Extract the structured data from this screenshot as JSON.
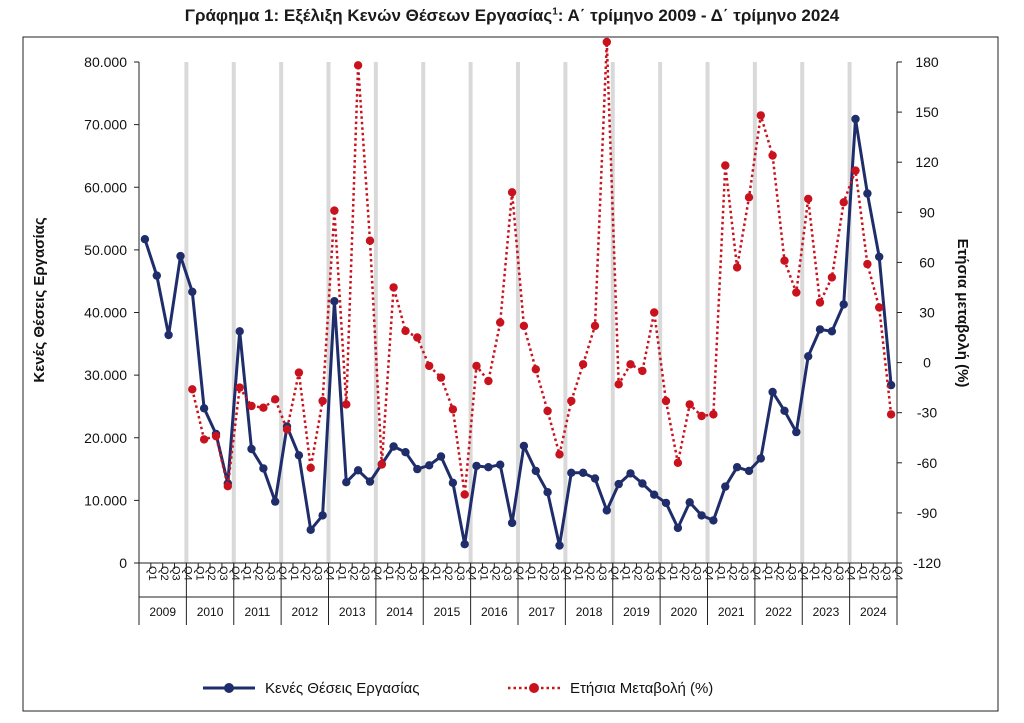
{
  "chart_data": {
    "type": "line",
    "title_main": "Γράφημα 1: Εξέλιξη Κενών Θέσεων Εργασίας",
    "title_sup": "1",
    "title_rest": ": Α΄ τρίμηνο 2009 - Δ΄ τρίμηνο 2024",
    "ylabel_left": "Κενές Θέσεις Εργασίας",
    "ylabel_right": "Ετήσια μεταβολή (%)",
    "y_left_lim": [
      0,
      80000
    ],
    "y_left_ticks": [
      "0",
      "10.000",
      "20.000",
      "30.000",
      "40.000",
      "50.000",
      "60.000",
      "70.000",
      "80.000"
    ],
    "y_right_lim": [
      -120,
      180
    ],
    "y_right_ticks": [
      "-120",
      "-90",
      "-60",
      "-30",
      "0",
      "30",
      "60",
      "90",
      "120",
      "150",
      "180"
    ],
    "quarter_labels": [
      "Q1",
      "Q2",
      "Q3",
      "Q4"
    ],
    "years": [
      "2009",
      "2010",
      "2011",
      "2012",
      "2013",
      "2014",
      "2015",
      "2016",
      "2017",
      "2018",
      "2019",
      "2020",
      "2021",
      "2022",
      "2023",
      "2024"
    ],
    "grid": "vertical-year-bands",
    "legend_position": "bottom",
    "series": [
      {
        "name": "Κενές Θέσεις Εργασίας",
        "axis": "left",
        "color": "#1f2d6b",
        "style": "solid",
        "values": [
          51700,
          45900,
          36400,
          49000,
          43300,
          24700,
          20600,
          12700,
          37000,
          18200,
          15100,
          9800,
          21800,
          17200,
          5300,
          7600,
          41800,
          12900,
          14800,
          13000,
          15800,
          18600,
          17700,
          15000,
          15600,
          17000,
          12800,
          3000,
          15500,
          15300,
          15700,
          6400,
          18700,
          14700,
          11300,
          2800,
          14400,
          14400,
          13500,
          8400,
          12600,
          14300,
          12700,
          10900,
          9600,
          5600,
          9700,
          7600,
          6800,
          12200,
          15300,
          14700,
          16700,
          27300,
          24300,
          20900,
          33000,
          37300,
          37000,
          41300,
          70900,
          59000,
          48900,
          28400
        ]
      },
      {
        "name": "Ετήσια Μεταβολή (%)",
        "axis": "right",
        "color": "#c8121e",
        "style": "dotted",
        "values": [
          null,
          null,
          null,
          null,
          -16,
          -46,
          -44,
          -74,
          -15,
          -26,
          -27,
          -22,
          -40,
          -6,
          -63,
          -23,
          91,
          -25,
          178,
          73,
          -61,
          45,
          19,
          15,
          -2,
          -9,
          -28,
          -79,
          -2,
          -11,
          24,
          102,
          22,
          -4,
          -29,
          -55,
          -23,
          -1,
          22,
          192,
          -13,
          -1,
          -5,
          30,
          -23,
          -60,
          -25,
          -32,
          -31,
          118,
          57,
          99,
          148,
          124,
          61,
          42,
          98,
          36,
          51,
          96,
          115,
          59,
          33,
          -31
        ]
      }
    ]
  }
}
